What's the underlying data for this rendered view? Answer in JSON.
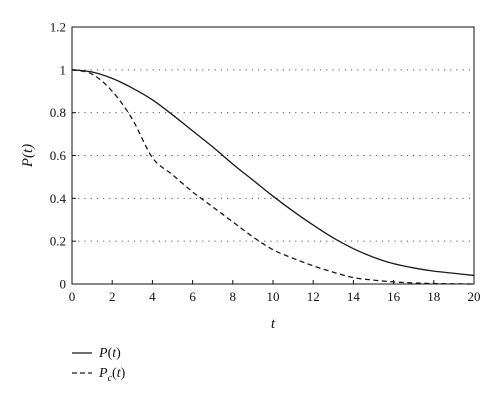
{
  "chart_data": {
    "type": "line",
    "title": "",
    "xlabel": "t",
    "ylabel": "P(t)",
    "xlim": [
      0,
      20
    ],
    "ylim": [
      0,
      1.2
    ],
    "xticks": [
      0,
      2,
      4,
      6,
      8,
      10,
      12,
      14,
      16,
      18,
      20
    ],
    "yticks": [
      0,
      0.2,
      0.4,
      0.6,
      0.8,
      1,
      1.2
    ],
    "xtick_labels": [
      "0",
      "2",
      "4",
      "6",
      "8",
      "10",
      "12",
      "14",
      "16",
      "18",
      "20"
    ],
    "ytick_labels": [
      "0",
      "0.2",
      "0.4",
      "0.6",
      "0.8",
      "1",
      "1.2"
    ],
    "grid": "horizontal dotted",
    "legend_position": "bottom-left, below chart",
    "series": [
      {
        "name": "P(t)",
        "style": "solid",
        "color": "#1a1a1a",
        "x": [
          0,
          1,
          2,
          3,
          4,
          5,
          6,
          7,
          8,
          9,
          10,
          11,
          12,
          13,
          14,
          15,
          16,
          17,
          18,
          19,
          20
        ],
        "y": [
          1.0,
          0.99,
          0.96,
          0.915,
          0.86,
          0.79,
          0.715,
          0.64,
          0.56,
          0.485,
          0.41,
          0.34,
          0.275,
          0.215,
          0.165,
          0.125,
          0.095,
          0.075,
          0.06,
          0.05,
          0.04
        ]
      },
      {
        "name": "Pc(t)",
        "style": "dashed",
        "color": "#1a1a1a",
        "x": [
          0,
          1,
          2,
          3,
          4,
          5,
          6,
          7,
          8,
          9,
          10,
          11,
          12,
          13,
          14,
          15,
          16,
          17,
          18,
          19,
          20
        ],
        "y": [
          1.0,
          0.98,
          0.9,
          0.77,
          0.59,
          0.51,
          0.43,
          0.36,
          0.29,
          0.22,
          0.16,
          0.12,
          0.085,
          0.055,
          0.03,
          0.018,
          0.01,
          0.005,
          0.002,
          0.001,
          0.0
        ]
      }
    ],
    "legend": [
      {
        "key": "solid",
        "label_main": "P",
        "label_sub": "",
        "label_rest": "(t)"
      },
      {
        "key": "dashed",
        "label_main": "P",
        "label_sub": "c",
        "label_rest": "(t)"
      }
    ]
  }
}
